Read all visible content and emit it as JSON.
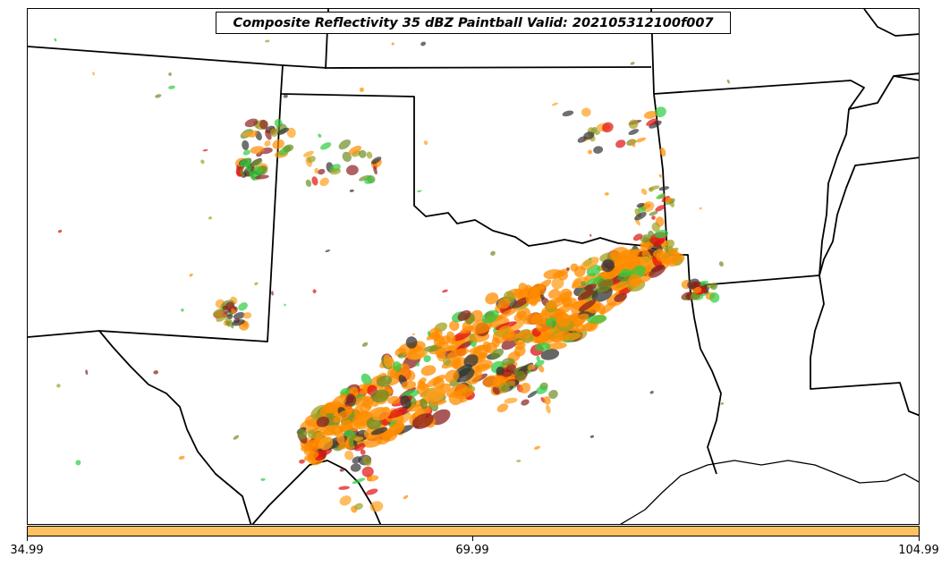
{
  "title": "Composite Reflectivity 35 dBZ Paintball Valid: 202105312100f007",
  "colorbar": {
    "color": "#FDC163",
    "ticks": [
      "34.99",
      "69.99",
      "104.99"
    ]
  },
  "paintball_colors": [
    "#FF8C00",
    "#FF9F1C",
    "#E01010",
    "#2ECC40",
    "#6B8E23",
    "#8B2020",
    "#A0A020",
    "#333333"
  ]
}
